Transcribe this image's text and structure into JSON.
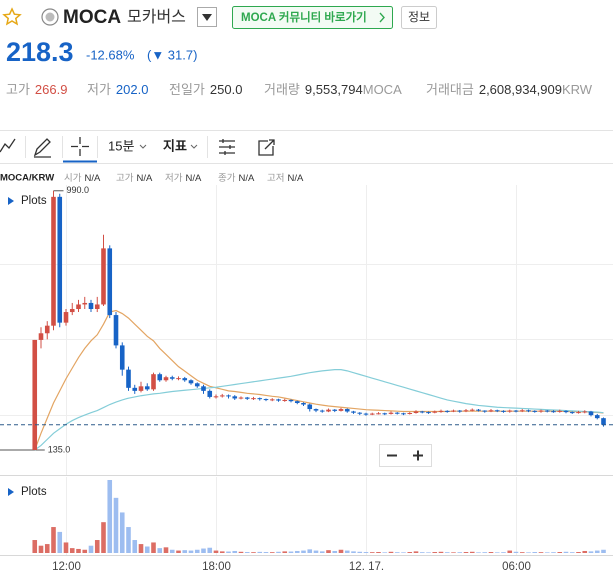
{
  "header": {
    "name": "MOCA",
    "korean_name": "모카버스",
    "community_button": "MOCA 커뮤니티 바로가기",
    "info_button": "정보",
    "price": 218.3,
    "change_rate": "-12.68%",
    "change": "(▼ 31.7)",
    "stats": [
      {
        "label": "고가",
        "value": "266.9"
      },
      {
        "label": "저가",
        "value": "202.0"
      },
      {
        "label": "전일가",
        "value": "250.0"
      },
      {
        "label": "거래량",
        "value": "9,553,794",
        "unit": "MOCA"
      },
      {
        "label": "거래대금",
        "value": "2,608,934,909",
        "unit": "KRW"
      }
    ]
  },
  "toolbar": {
    "interval": "15분",
    "indicator": "지표"
  },
  "info_row": {
    "pair": "MOCA/KRW",
    "items": [
      {
        "label": "시가",
        "value": "N/A"
      },
      {
        "label": "고가",
        "value": "N/A"
      },
      {
        "label": "저가",
        "value": "N/A"
      },
      {
        "label": "종가",
        "value": "N/A"
      },
      {
        "label": "고저",
        "value": "N/A"
      }
    ]
  },
  "chart_data": {
    "type": "candlestick",
    "plots_label": "Plots",
    "volume_plots_label": "Plots",
    "categories": [
      null,
      null,
      null,
      null,
      null,
      "12:00",
      null,
      null,
      null,
      null,
      null,
      null,
      null,
      null,
      null,
      null,
      null,
      null,
      null,
      null,
      null,
      null,
      null,
      null,
      null,
      null,
      null,
      null,
      null,
      "18:00",
      null,
      null,
      null,
      null,
      null,
      null,
      null,
      null,
      null,
      null,
      null,
      null,
      null,
      null,
      null,
      null,
      null,
      null,
      null,
      null,
      null,
      null,
      null,
      "12. 17.",
      null,
      null,
      null,
      null,
      null,
      null,
      null,
      null,
      null,
      null,
      null,
      null,
      null,
      null,
      null,
      null,
      null,
      null,
      null,
      null,
      null,
      null,
      null,
      "06:00",
      null,
      null,
      null,
      null,
      null,
      null,
      null,
      null,
      null,
      null,
      null,
      null,
      null,
      null
    ],
    "open": [
      135,
      498,
      520,
      545,
      970,
      555,
      590,
      600,
      615,
      620,
      600,
      615,
      800,
      580,
      480,
      400,
      340,
      330,
      345,
      335,
      385,
      365,
      375,
      370,
      372,
      365,
      355,
      345,
      330,
      310,
      312,
      315,
      312,
      305,
      308,
      304,
      306,
      303,
      300,
      302,
      298,
      300,
      296,
      290,
      285,
      270,
      265,
      262,
      268,
      264,
      270,
      262,
      258,
      255,
      252,
      255,
      256,
      254,
      258,
      256,
      255,
      257,
      262,
      260,
      258,
      262,
      264,
      262,
      265,
      263,
      266,
      268,
      265,
      262,
      266,
      264,
      262,
      265,
      263,
      266,
      264,
      262,
      265,
      263,
      262,
      264,
      260,
      258,
      260,
      262,
      250,
      240
    ],
    "high": [
      498,
      540,
      560,
      990,
      980,
      600,
      620,
      630,
      640,
      630,
      640,
      845,
      810,
      590,
      490,
      410,
      350,
      360,
      355,
      390,
      390,
      380,
      380,
      378,
      376,
      368,
      358,
      350,
      335,
      318,
      320,
      318,
      316,
      312,
      310,
      310,
      308,
      305,
      306,
      304,
      304,
      302,
      298,
      292,
      288,
      272,
      268,
      272,
      270,
      274,
      272,
      264,
      260,
      258,
      258,
      260,
      258,
      262,
      260,
      258,
      260,
      266,
      264,
      262,
      265,
      268,
      266,
      268,
      267,
      270,
      272,
      270,
      266,
      270,
      268,
      266,
      268,
      267,
      270,
      268,
      266,
      268,
      267,
      266,
      268,
      266,
      262,
      264,
      266,
      264,
      254,
      242
    ],
    "low": [
      135,
      470,
      500,
      530,
      540,
      545,
      580,
      590,
      600,
      590,
      590,
      610,
      570,
      470,
      380,
      330,
      320,
      325,
      330,
      330,
      360,
      360,
      365,
      365,
      360,
      350,
      340,
      320,
      305,
      305,
      308,
      305,
      300,
      302,
      300,
      300,
      298,
      296,
      296,
      294,
      294,
      292,
      286,
      280,
      262,
      260,
      258,
      260,
      260,
      262,
      258,
      254,
      250,
      248,
      250,
      252,
      250,
      252,
      252,
      250,
      252,
      255,
      256,
      254,
      256,
      258,
      258,
      260,
      258,
      260,
      262,
      262,
      258,
      260,
      260,
      258,
      258,
      259,
      260,
      260,
      258,
      258,
      259,
      258,
      258,
      256,
      254,
      255,
      256,
      246,
      236,
      212
    ],
    "close": [
      498,
      520,
      545,
      970,
      555,
      590,
      600,
      615,
      620,
      600,
      615,
      800,
      580,
      480,
      400,
      340,
      330,
      345,
      335,
      385,
      365,
      375,
      370,
      372,
      365,
      355,
      345,
      330,
      310,
      312,
      315,
      312,
      305,
      308,
      304,
      306,
      303,
      300,
      302,
      298,
      300,
      296,
      290,
      285,
      270,
      265,
      262,
      268,
      264,
      270,
      262,
      258,
      255,
      252,
      255,
      256,
      254,
      258,
      256,
      255,
      257,
      262,
      260,
      258,
      262,
      264,
      262,
      265,
      263,
      266,
      268,
      265,
      262,
      266,
      264,
      262,
      265,
      263,
      266,
      264,
      262,
      265,
      263,
      262,
      264,
      260,
      258,
      260,
      262,
      250,
      240,
      218.3
    ],
    "volume": [
      160000,
      90000,
      110000,
      320000,
      260000,
      130000,
      60000,
      50000,
      40000,
      90000,
      160000,
      380000,
      900000,
      680000,
      500000,
      320000,
      160000,
      110000,
      80000,
      130000,
      60000,
      70000,
      40000,
      30000,
      35000,
      30000,
      40000,
      55000,
      65000,
      30000,
      20000,
      18000,
      25000,
      15000,
      12000,
      10000,
      14000,
      12000,
      10000,
      15000,
      20000,
      18000,
      25000,
      30000,
      45000,
      30000,
      20000,
      35000,
      25000,
      40000,
      30000,
      20000,
      15000,
      12000,
      10000,
      12000,
      8000,
      15000,
      10000,
      8000,
      12000,
      20000,
      10000,
      8000,
      12000,
      15000,
      10000,
      8000,
      10000,
      12000,
      15000,
      8000,
      10000,
      12000,
      8000,
      10000,
      30000,
      15000,
      10000,
      8000,
      12000,
      10000,
      8000,
      10000,
      12000,
      15000,
      10000,
      12000,
      25000,
      20000,
      30000,
      40000
    ],
    "ma_series": [
      {
        "color": "#e3a563",
        "values": [
          135,
          190,
          240,
          290,
          330,
          370,
          405,
          440,
          470,
          495,
          515,
          550,
          590,
          595,
          585,
          570,
          550,
          530,
          510,
          495,
          470,
          450,
          430,
          410,
          395,
          380,
          365,
          355,
          345,
          340,
          335,
          330,
          328,
          325,
          322,
          320,
          318,
          315,
          312,
          310,
          306,
          302,
          298,
          294,
          290,
          286,
          283,
          280,
          278,
          276,
          274,
          272,
          270,
          268,
          267,
          266,
          265,
          264,
          263,
          262,
          262,
          262,
          262,
          262,
          262,
          262,
          262,
          263,
          263,
          263,
          263,
          263,
          263,
          263,
          263,
          263,
          263,
          263,
          263,
          263,
          263,
          263,
          263,
          263,
          263,
          262,
          262,
          261,
          261,
          260,
          259,
          257
        ]
      },
      {
        "color": "#84cdd8",
        "values": [
          135,
          150,
          170,
          190,
          205,
          220,
          232,
          242,
          250,
          258,
          265,
          275,
          285,
          293,
          300,
          306,
          310,
          314,
          317,
          320,
          322,
          325,
          328,
          330,
          332,
          334,
          336,
          338,
          340,
          342,
          345,
          348,
          351,
          354,
          357,
          360,
          363,
          366,
          369,
          372,
          375,
          378,
          382,
          386,
          390,
          393,
          396,
          398,
          400,
          400,
          396,
          390,
          384,
          378,
          372,
          366,
          360,
          354,
          348,
          342,
          336,
          330,
          324,
          318,
          312,
          306,
          300,
          296,
          292,
          288,
          285,
          282,
          280,
          278,
          276,
          275,
          274,
          273,
          272,
          271,
          270,
          269,
          268,
          267,
          266,
          265,
          264,
          263,
          262,
          261,
          260,
          258
        ]
      }
    ],
    "high_marker": {
      "value": 990,
      "label": "990.0"
    },
    "low_marker": {
      "value": 135,
      "label": "135.0"
    },
    "ylim": [
      69,
      1075
    ],
    "ygrid": [
      250,
      500,
      750
    ],
    "grid": true,
    "up_color": "#d24f45",
    "down_color": "#1763c6",
    "volume_up_color": "#dc6d64",
    "volume_down_color": "#9dbdf0"
  }
}
